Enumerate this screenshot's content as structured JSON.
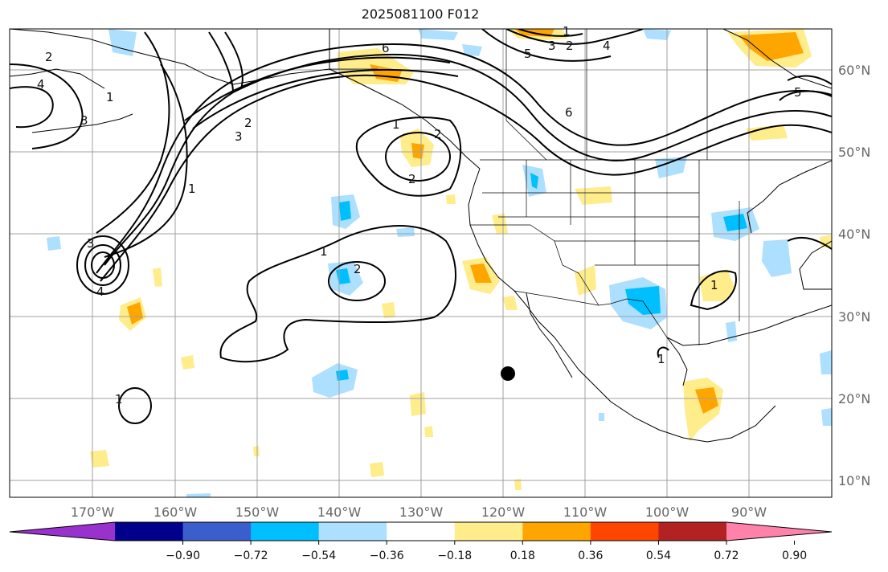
{
  "title": "2025081100 F012",
  "map": {
    "lon_labels": [
      "170°W",
      "160°W",
      "150°W",
      "140°W",
      "130°W",
      "120°W",
      "110°W",
      "100°W",
      "90°W"
    ],
    "lat_labels": [
      "60°N",
      "50°N",
      "40°N",
      "30°N",
      "20°N",
      "10°N"
    ],
    "contour_labels": [
      "2",
      "4",
      "3",
      "1",
      "3",
      "4",
      "1",
      "2",
      "6",
      "3",
      "2",
      "1",
      "2",
      "1",
      "2",
      "6",
      "5",
      "3",
      "2",
      "1",
      "4",
      "5",
      "1",
      "1",
      "1"
    ],
    "marker": "station-dot",
    "colors": {
      "contour": "#000000",
      "coast": "#000000",
      "grid": "#a0a0a0"
    }
  },
  "colorbar": {
    "labels": [
      "−0.90",
      "−0.72",
      "−0.54",
      "−0.36",
      "−0.18",
      "0.18",
      "0.36",
      "0.54",
      "0.72",
      "0.90"
    ],
    "colors": [
      "#9932cc",
      "#00008b",
      "#3a5fcd",
      "#00bfff",
      "#addfff",
      "#ffffff",
      "#ffec8b",
      "#ffa500",
      "#ff4500",
      "#b22222",
      "#ff82ab"
    ]
  }
}
